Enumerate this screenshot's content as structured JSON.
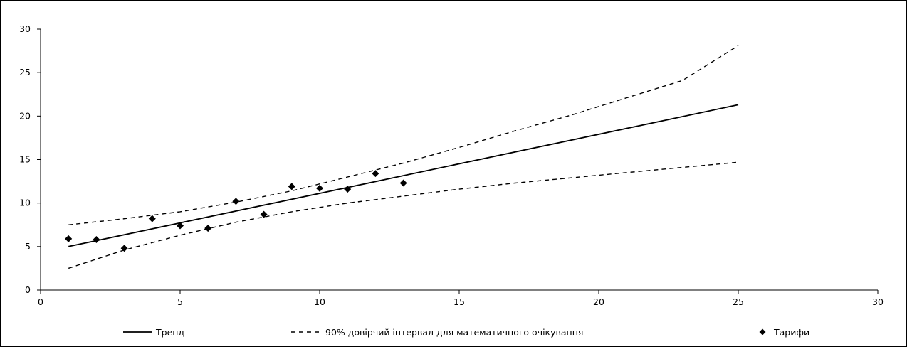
{
  "chart_data": {
    "type": "scatter",
    "x_axis": {
      "range": [
        0,
        30
      ],
      "ticks": [
        0,
        5,
        10,
        15,
        20,
        25,
        30
      ]
    },
    "y_axis": {
      "range": [
        0,
        30
      ],
      "ticks": [
        0,
        5,
        10,
        15,
        20,
        25,
        30
      ]
    },
    "grid": false,
    "legend_position": "bottom",
    "series": [
      {
        "name": "Тренд",
        "style": "solid-line",
        "color": "#000000",
        "x": [
          1,
          25
        ],
        "y": [
          5.0,
          21.3
        ]
      },
      {
        "name": "90% довірчий інтервал для математичного очікування",
        "style": "dashed-line",
        "color": "#000000",
        "bands": [
          {
            "x": [
              1,
              3,
              5,
              7,
              9,
              11,
              13,
              15,
              17,
              19,
              21,
              23,
              25
            ],
            "y": [
              7.5,
              8.2,
              9.0,
              10.1,
              11.4,
              13.0,
              14.6,
              16.4,
              18.3,
              20.1,
              22.1,
              24.1,
              28.1
            ]
          },
          {
            "x": [
              1,
              3,
              5,
              7,
              9,
              11,
              13,
              15,
              17,
              19,
              21,
              23,
              25
            ],
            "y": [
              2.5,
              4.6,
              6.3,
              7.8,
              9.0,
              10.0,
              10.8,
              11.6,
              12.3,
              12.9,
              13.5,
              14.1,
              14.7
            ]
          }
        ]
      },
      {
        "name": "Тарифи",
        "style": "diamond-markers",
        "color": "#000000",
        "x": [
          1,
          2,
          3,
          4,
          5,
          6,
          7,
          8,
          9,
          10,
          11,
          12,
          13
        ],
        "y": [
          5.9,
          5.8,
          4.8,
          8.2,
          7.4,
          7.1,
          10.2,
          8.7,
          11.9,
          11.7,
          11.6,
          13.4,
          12.3
        ]
      }
    ]
  }
}
